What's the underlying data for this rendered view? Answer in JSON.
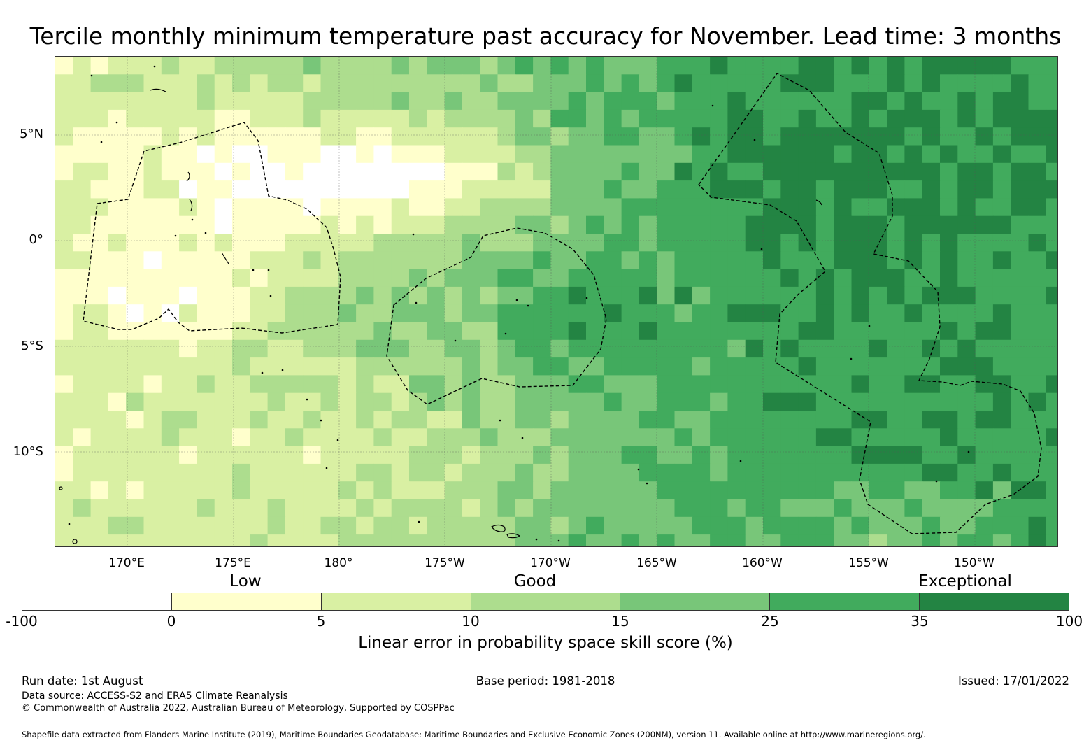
{
  "title": "Tercile monthly minimum temperature past accuracy for November. Lead time: 3 months",
  "map": {
    "lat_labels": [
      "5°N",
      "0°",
      "5°S",
      "10°S"
    ],
    "lon_labels": [
      "170°E",
      "175°E",
      "180°",
      "175°W",
      "170°W",
      "165°W",
      "160°W",
      "155°W",
      "150°W"
    ],
    "field_colors": [
      "#ffffff",
      "#ffffcc",
      "#d9f0a3",
      "#addd8e",
      "#78c679",
      "#41ab5d",
      "#238443"
    ],
    "coastline_color": "#000000",
    "boundary_style": "dashed"
  },
  "legend": {
    "categories": [
      "Low",
      "Good",
      "Exceptional"
    ],
    "ticks": [
      "-100",
      "0",
      "5",
      "10",
      "15",
      "25",
      "35",
      "100"
    ],
    "colors": [
      "#ffffff",
      "#ffffcc",
      "#d9f0a3",
      "#addd8e",
      "#78c679",
      "#41ab5d",
      "#238443"
    ],
    "label": "Linear error in probability space skill score (%)"
  },
  "footer": {
    "run_date": "Run date: 1st August",
    "base_period": "Base period: 1981-2018",
    "issued": "Issued: 17/01/2022",
    "data_source": "Data source: ACCESS-S2 and ERA5 Climate Reanalysis",
    "copyright": "© Commonwealth of Australia 2022, Australian Bureau of Meteorology, Supported by COSPPac",
    "shapefile": "Shapefile data extracted from Flanders Marine Institute (2019), Maritime Boundaries Geodatabase: Maritime Boundaries and Exclusive Economic Zones (200NM), version 11. Available online at http://www.marineregions.org/."
  }
}
